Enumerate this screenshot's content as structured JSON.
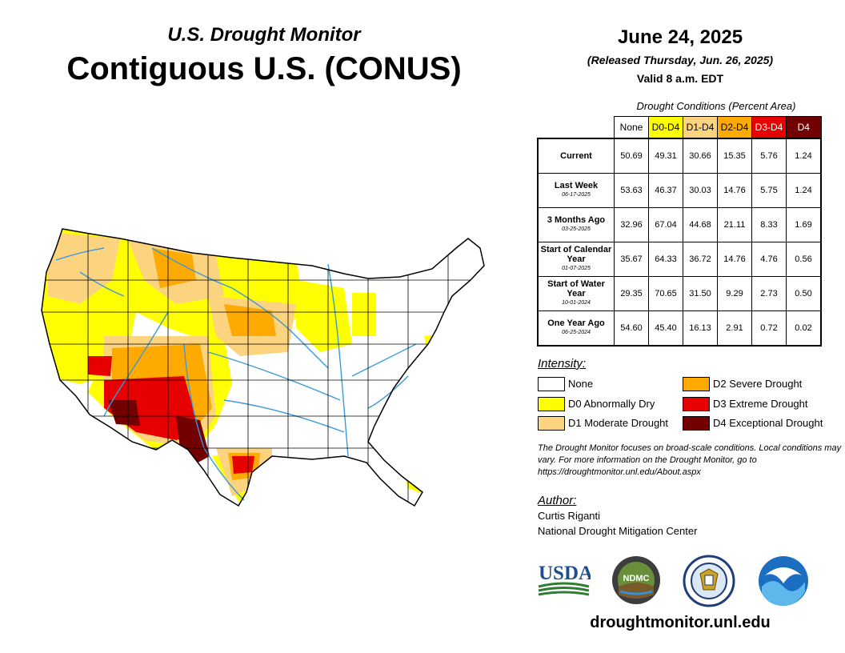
{
  "header": {
    "subtitle": "U.S. Drought Monitor",
    "title": "Contiguous U.S. (CONUS)",
    "date": "June 24, 2025",
    "released": "(Released Thursday, Jun. 26, 2025)",
    "valid": "Valid 8 a.m. EDT"
  },
  "table": {
    "caption": "Drought Conditions (Percent Area)",
    "columns": [
      {
        "label": "None",
        "color": "#ffffff",
        "text": "#000000"
      },
      {
        "label": "D0-D4",
        "color": "#ffff00",
        "text": "#000000"
      },
      {
        "label": "D1-D4",
        "color": "#fcd37f",
        "text": "#000000"
      },
      {
        "label": "D2-D4",
        "color": "#ffaa00",
        "text": "#000000"
      },
      {
        "label": "D3-D4",
        "color": "#e60000",
        "text": "#ffffff"
      },
      {
        "label": "D4",
        "color": "#730000",
        "text": "#ffffff"
      }
    ],
    "rows": [
      {
        "label": "Current",
        "date": "",
        "values": [
          "50.69",
          "49.31",
          "30.66",
          "15.35",
          "5.76",
          "1.24"
        ]
      },
      {
        "label": "Last Week",
        "date": "06-17-2025",
        "values": [
          "53.63",
          "46.37",
          "30.03",
          "14.76",
          "5.75",
          "1.24"
        ]
      },
      {
        "label": "3 Months Ago",
        "date": "03-25-2025",
        "values": [
          "32.96",
          "67.04",
          "44.68",
          "21.11",
          "8.33",
          "1.69"
        ]
      },
      {
        "label": "Start of Calendar Year",
        "date": "01-07-2025",
        "values": [
          "35.67",
          "64.33",
          "36.72",
          "14.76",
          "4.76",
          "0.56"
        ]
      },
      {
        "label": "Start of Water Year",
        "date": "10-01-2024",
        "values": [
          "29.35",
          "70.65",
          "31.50",
          "9.29",
          "2.73",
          "0.50"
        ]
      },
      {
        "label": "One Year Ago",
        "date": "06-25-2024",
        "values": [
          "54.60",
          "45.40",
          "16.13",
          "2.91",
          "0.72",
          "0.02"
        ]
      }
    ]
  },
  "legend": {
    "title": "Intensity:",
    "items": [
      {
        "label": "None",
        "color": "#ffffff"
      },
      {
        "label": "D0 Abnormally Dry",
        "color": "#ffff00"
      },
      {
        "label": "D1 Moderate Drought",
        "color": "#fcd37f"
      },
      {
        "label": "D2 Severe Drought",
        "color": "#ffaa00"
      },
      {
        "label": "D3 Extreme Drought",
        "color": "#e60000"
      },
      {
        "label": "D4 Exceptional Drought",
        "color": "#730000"
      }
    ]
  },
  "note": "The Drought Monitor focuses on broad-scale conditions. Local conditions may vary. For more information on the Drought Monitor, go to https://droughtmonitor.unl.edu/About.aspx",
  "author": {
    "title": "Author:",
    "name": "Curtis Riganti",
    "org": "National Drought Mitigation Center"
  },
  "logos": {
    "usda": "USDA",
    "ndmc": "NDMC"
  },
  "website": "droughtmonitor.unl.edu",
  "colors": {
    "river": "#3a9ad9",
    "border": "#000000"
  }
}
